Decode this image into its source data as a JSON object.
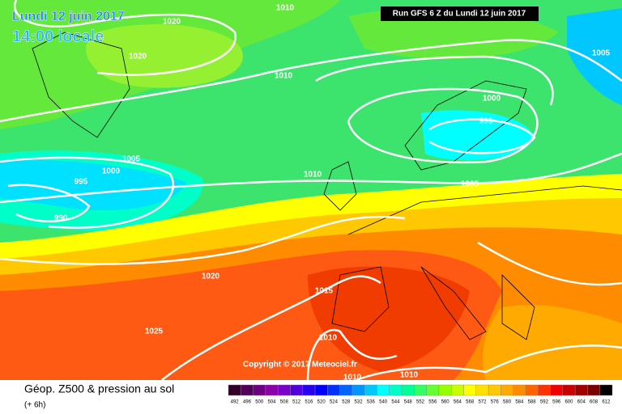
{
  "header": {
    "date": "Lundi 12 juin 2017",
    "time": "14:00 locale",
    "run": "Run GFS 6 Z du Lundi 12 juin 2017",
    "copyright": "Copyright © 2017 Meteociel.fr"
  },
  "isobar_labels": [
    "1020",
    "1010",
    "1005",
    "1020",
    "1010",
    "1000",
    "995",
    "1005",
    "1000",
    "995",
    "1010",
    "1005",
    "990",
    "1020",
    "1015",
    "1025",
    "1010",
    "1010",
    "1010"
  ],
  "legend": {
    "title": "Géop. Z500 & pression au sol",
    "subtitle": "(+ 6h)",
    "scale": [
      492,
      496,
      500,
      504,
      508,
      512,
      516,
      520,
      524,
      528,
      532,
      536,
      540,
      544,
      548,
      552,
      556,
      560,
      564,
      568,
      572,
      576,
      580,
      584,
      588,
      592,
      596,
      600,
      604,
      608,
      612
    ],
    "colors": [
      "#320028",
      "#50005a",
      "#6e0082",
      "#8c00aa",
      "#7800c8",
      "#5000dc",
      "#2800f0",
      "#0000ff",
      "#0032ff",
      "#0064ff",
      "#0096ff",
      "#00c8ff",
      "#00ffff",
      "#00ffc8",
      "#00ff96",
      "#32ff64",
      "#64ff32",
      "#96ff00",
      "#c8ff00",
      "#ffff00",
      "#ffe100",
      "#ffc800",
      "#ffaa00",
      "#ff8c00",
      "#ff6400",
      "#ff3200",
      "#f00000",
      "#c80000",
      "#a00000",
      "#780000",
      "#000000"
    ]
  }
}
